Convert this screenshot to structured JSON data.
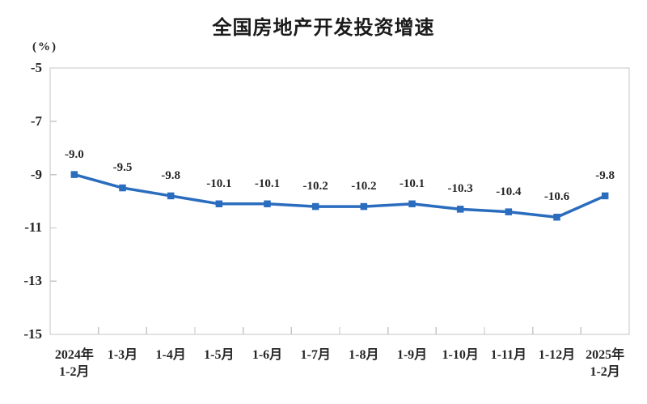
{
  "page": {
    "background": "#ffffff"
  },
  "chart_data": {
    "type": "line",
    "title": "全国房地产开发投资增速",
    "unit_label": "(%)",
    "categories": [
      "2024年\n1-2月",
      "1-3月",
      "1-4月",
      "1-5月",
      "1-6月",
      "1-7月",
      "1-8月",
      "1-9月",
      "1-10月",
      "1-11月",
      "1-12月",
      "2025年\n1-2月"
    ],
    "series": [
      {
        "name": "全国房地产开发投资增速",
        "values": [
          -9.0,
          -9.5,
          -9.8,
          -10.1,
          -10.1,
          -10.2,
          -10.2,
          -10.1,
          -10.3,
          -10.4,
          -10.6,
          -9.8
        ]
      }
    ],
    "data_labels": [
      "-9.0",
      "-9.5",
      "-9.8",
      "-10.1",
      "-10.1",
      "-10.2",
      "-10.2",
      "-10.1",
      "-10.3",
      "-10.4",
      "-10.6",
      "-9.8"
    ],
    "xlabel": "",
    "ylabel": "(%)",
    "ylim": [
      -15,
      -5
    ],
    "yticks": [
      -5,
      -7,
      -9,
      -11,
      -13,
      -15
    ],
    "grid": "off",
    "legend": "none",
    "colors": {
      "line": "#2a6cbe",
      "marker": "#2a6cbe",
      "axis": "#c6c6c6",
      "tick": "#c6c6c6",
      "text": "#262626",
      "title": "#1a1a1a"
    }
  }
}
